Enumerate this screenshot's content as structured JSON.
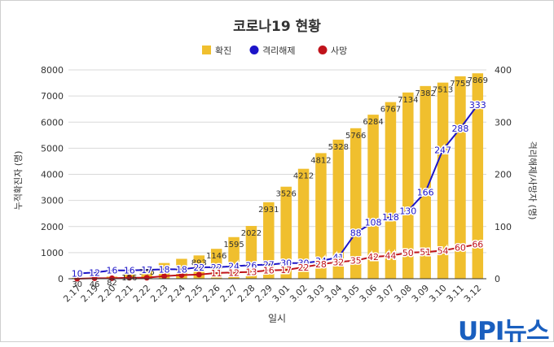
{
  "logo_text": "UPI뉴스",
  "chart_data": {
    "type": "bar",
    "title": "코로나19 현황",
    "xlabel": "일시",
    "ylabel_left": "누적확진자 (명)",
    "ylabel_right": "격리해제/사망자 (명)",
    "categories": [
      "2.17",
      "2.19",
      "2.20",
      "2.21",
      "2.22",
      "2.23",
      "2.24",
      "2.25",
      "2.26",
      "2.27",
      "2.28",
      "2.29",
      "3.01",
      "3.02",
      "3.03",
      "3.04",
      "3.05",
      "3.06",
      "3.07",
      "3.08",
      "3.09",
      "3.10",
      "3.11",
      "3.12"
    ],
    "left_axis": {
      "min": 0,
      "max": 8000,
      "ticks": [
        "0",
        "1000",
        "2000",
        "3000",
        "4000",
        "5000",
        "6000",
        "7000",
        "8000"
      ]
    },
    "right_axis": {
      "min": 0,
      "max": 400,
      "ticks": [
        "0",
        "100",
        "200",
        "300",
        "400"
      ]
    },
    "series": [
      {
        "name": "확진",
        "type": "bar",
        "axis": "left",
        "color": "#f0bf2e",
        "values": [
          30,
          46,
          82,
          156,
          346,
          602,
          763,
          893,
          1146,
          1595,
          2022,
          2931,
          3526,
          4212,
          4812,
          5328,
          5766,
          6284,
          6767,
          7134,
          7382,
          7513,
          7755,
          7869
        ],
        "labels": [
          "30",
          "46",
          "82",
          "156",
          "346",
          "",
          "",
          "893",
          "1146",
          "1595",
          "2022",
          "2931",
          "3526",
          "4212",
          "4812",
          "5328",
          "5766",
          "6284",
          "6767",
          "7134",
          "7382",
          "7513",
          "7755",
          "7869"
        ]
      },
      {
        "name": "격리해제",
        "type": "line",
        "axis": "right",
        "color": "#1c14c8",
        "values": [
          10,
          12,
          16,
          16,
          17,
          18,
          18,
          22,
          22,
          24,
          26,
          27,
          30,
          30,
          34,
          41,
          88,
          108,
          118,
          130,
          166,
          247,
          288,
          333
        ],
        "labels": [
          "10",
          "12",
          "16",
          "16",
          "17",
          "18",
          "18",
          "22",
          "22",
          "24",
          "26",
          "27",
          "30",
          "30",
          "34",
          "41",
          "88",
          "108",
          "118",
          "130",
          "166",
          "247",
          "288",
          "333"
        ]
      },
      {
        "name": "사망",
        "type": "line",
        "axis": "right",
        "color": "#c0131b",
        "values": [
          0,
          1,
          1,
          2,
          2,
          5,
          7,
          8,
          11,
          12,
          13,
          16,
          17,
          22,
          28,
          32,
          35,
          42,
          44,
          50,
          51,
          54,
          60,
          66
        ],
        "labels": [
          "",
          "",
          "",
          "",
          "",
          "",
          "",
          "",
          "11",
          "12",
          "13",
          "16",
          "17",
          "22",
          "28",
          "32",
          "35",
          "42",
          "44",
          "50",
          "51",
          "54",
          "60",
          "66"
        ]
      }
    ]
  }
}
